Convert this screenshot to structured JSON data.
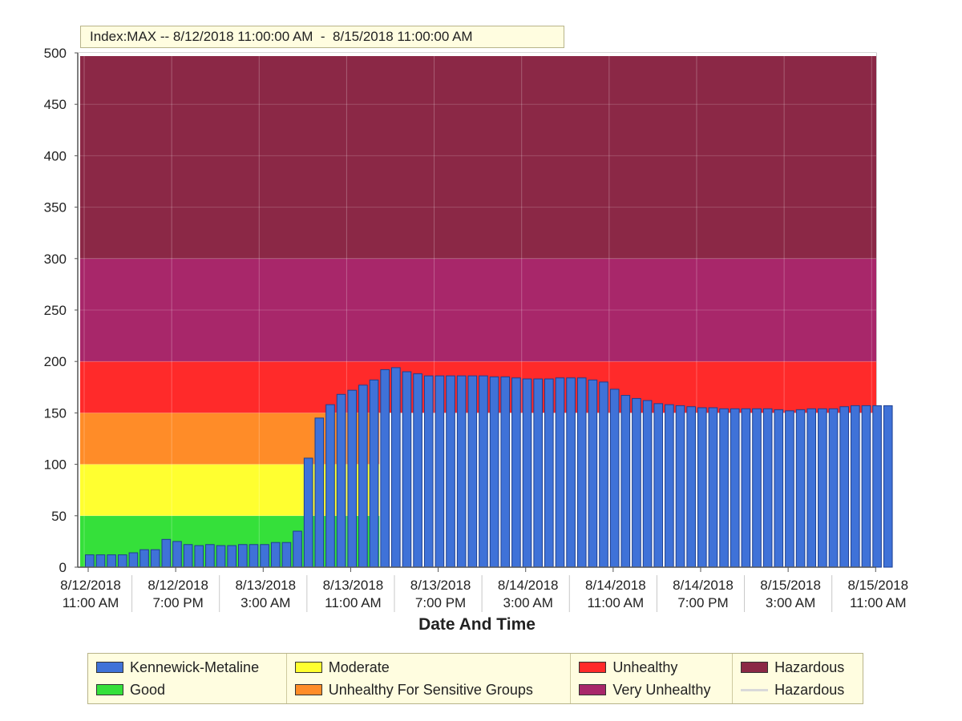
{
  "chart_data": {
    "type": "bar",
    "title": "Index:MAX -- 8/12/2018 11:00:00 AM  -  8/15/2018 11:00:00 AM",
    "xlabel": "Date And Time",
    "ylabel": "",
    "ylim": [
      0,
      500
    ],
    "yticks": [
      0,
      50,
      100,
      150,
      200,
      250,
      300,
      350,
      400,
      450,
      500
    ],
    "xtick_labels": [
      [
        "8/12/2018",
        "11:00 AM"
      ],
      [
        "8/12/2018",
        "7:00 PM"
      ],
      [
        "8/13/2018",
        "3:00 AM"
      ],
      [
        "8/13/2018",
        "11:00 AM"
      ],
      [
        "8/13/2018",
        "7:00 PM"
      ],
      [
        "8/14/2018",
        "3:00 AM"
      ],
      [
        "8/14/2018",
        "11:00 AM"
      ],
      [
        "8/14/2018",
        "7:00 PM"
      ],
      [
        "8/15/2018",
        "3:00 AM"
      ],
      [
        "8/15/2018",
        "11:00 AM"
      ]
    ],
    "grid": true,
    "legend_position": "bottom",
    "bands": [
      {
        "name": "Good",
        "from": 0,
        "to": 50,
        "color": "#35e03a"
      },
      {
        "name": "Moderate",
        "from": 50,
        "to": 100,
        "color": "#ffff30"
      },
      {
        "name": "Unhealthy For Sensitive Groups",
        "from": 100,
        "to": 150,
        "color": "#ff8c28"
      },
      {
        "name": "Unhealthy",
        "from": 150,
        "to": 200,
        "color": "#ff2a2a"
      },
      {
        "name": "Very Unhealthy",
        "from": 200,
        "to": 300,
        "color": "#a8276a"
      },
      {
        "name": "Hazardous",
        "from": 300,
        "to": 500,
        "color": "#8b2846"
      }
    ],
    "band_end_hour": 27,
    "series": [
      {
        "name": "Kennewick-Metaline",
        "color": "#3f72d8",
        "values": [
          12,
          12,
          12,
          12,
          14,
          17,
          17,
          27,
          25,
          22,
          21,
          22,
          21,
          21,
          22,
          22,
          22,
          24,
          24,
          35,
          106,
          145,
          158,
          168,
          172,
          177,
          182,
          192,
          194,
          190,
          188,
          186,
          186,
          186,
          186,
          186,
          186,
          185,
          185,
          184,
          183,
          183,
          183,
          184,
          184,
          184,
          182,
          180,
          173,
          167,
          164,
          162,
          159,
          158,
          157,
          156,
          155,
          155,
          154,
          154,
          154,
          154,
          154,
          153,
          152,
          153,
          154,
          154,
          154,
          156,
          157,
          157,
          157,
          157
        ]
      }
    ]
  },
  "legend": {
    "columns": [
      [
        {
          "label": "Kennewick-Metaline",
          "color": "#3f72d8",
          "kind": "box"
        },
        {
          "label": "Good",
          "color": "#35e03a",
          "kind": "box"
        }
      ],
      [
        {
          "label": "Moderate",
          "color": "#ffff30",
          "kind": "box"
        },
        {
          "label": "Unhealthy For Sensitive Groups",
          "color": "#ff8c28",
          "kind": "box"
        }
      ],
      [
        {
          "label": "Unhealthy",
          "color": "#ff2a2a",
          "kind": "box"
        },
        {
          "label": "Very Unhealthy",
          "color": "#a8276a",
          "kind": "box"
        }
      ],
      [
        {
          "label": "Hazardous",
          "color": "#8b2846",
          "kind": "box"
        },
        {
          "label": "Hazardous",
          "color": "#d9d9d9",
          "kind": "line"
        }
      ]
    ]
  }
}
